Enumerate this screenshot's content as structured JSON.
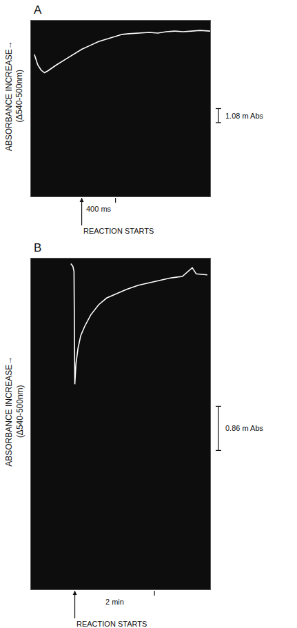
{
  "chart_data": [
    {
      "type": "line",
      "panel": "A",
      "ylabel": [
        "ABSORBANCE INCREASE→",
        "(Δ540-500nm)"
      ],
      "x": [
        -560,
        -520,
        -480,
        -440,
        -400,
        -300,
        -200,
        -100,
        0,
        100,
        200,
        300,
        400,
        480,
        560,
        700,
        800,
        900,
        1000,
        1100,
        1200,
        1300,
        1400,
        1520
      ],
      "values": [
        1.4,
        0.6,
        0.2,
        0,
        0.15,
        0.6,
        1.0,
        1.4,
        1.8,
        2.1,
        2.4,
        2.6,
        2.8,
        2.95,
        3.0,
        3.05,
        3.1,
        3.05,
        3.15,
        3.2,
        3.15,
        3.2,
        3.25,
        3.2
      ],
      "color": "#ffffff",
      "xlim": [
        -600,
        1520
      ],
      "ylim": [
        -9.5,
        4
      ],
      "tick_labels": false,
      "scale_bars": [
        {
          "axis": "y",
          "value": 1.08,
          "label": "1.08 m Abs"
        },
        {
          "axis": "x",
          "value": 400,
          "label": "400 ms"
        }
      ],
      "annotations": [
        {
          "text": "REACTION STARTS",
          "x": 0
        }
      ]
    },
    {
      "type": "line",
      "panel": "B",
      "ylabel": [
        "ABSORBANCE INCREASE→",
        "(Δ540-500nm)"
      ],
      "x": [
        -0.1,
        -0.05,
        -0.02,
        0,
        0.03,
        0.08,
        0.15,
        0.25,
        0.4,
        0.6,
        0.8,
        1.0,
        1.3,
        1.6,
        2.0,
        2.4,
        2.7,
        2.95,
        3.05,
        3.33
      ],
      "values": [
        2.35,
        2.3,
        2.2,
        0,
        0.4,
        0.7,
        0.95,
        1.13,
        1.35,
        1.55,
        1.68,
        1.75,
        1.85,
        1.93,
        2.0,
        2.07,
        2.1,
        2.27,
        2.15,
        2.13
      ],
      "color": "#ffffff",
      "xlim": [
        -1.1,
        3.4
      ],
      "ylim": [
        -4,
        2.45
      ],
      "tick_labels": false,
      "scale_bars": [
        {
          "axis": "y",
          "value": 0.86,
          "label": "0.86 m Abs"
        },
        {
          "axis": "x",
          "value": 2,
          "label": "2 min"
        }
      ],
      "annotations": [
        {
          "text": "REACTION STARTS",
          "x": 0
        }
      ]
    }
  ]
}
